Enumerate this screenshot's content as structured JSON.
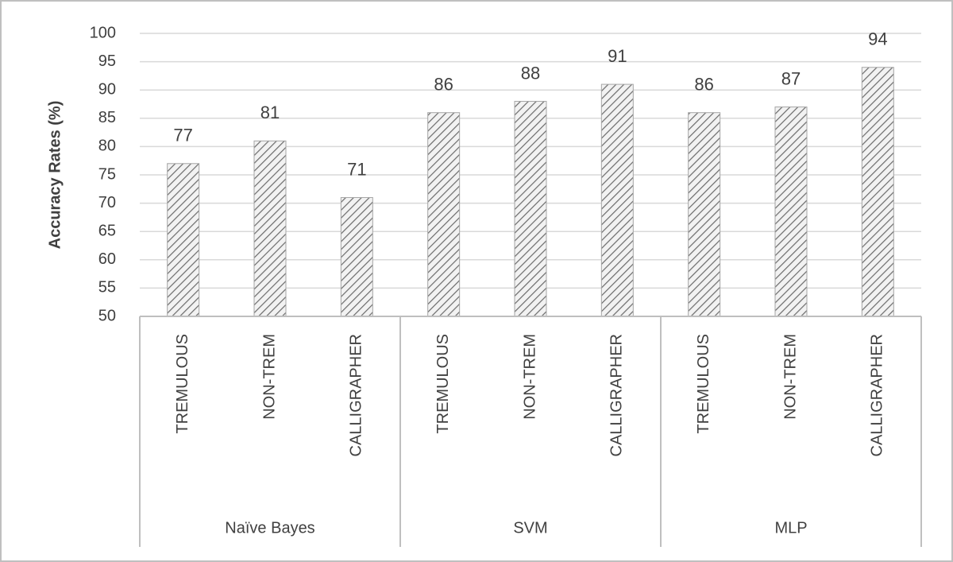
{
  "chart_data": {
    "type": "bar",
    "y_axis_label": "Accuracy Rates (%)",
    "categories": [
      "TREMULOUS",
      "NON-TREM",
      "CALLIGRAPHER",
      "TREMULOUS",
      "NON-TREM",
      "CALLIGRAPHER",
      "TREMULOUS",
      "NON-TREM",
      "CALLIGRAPHER"
    ],
    "category_groups": [
      "Naïve Bayes",
      "SVM",
      "MLP"
    ],
    "values": [
      77,
      81,
      71,
      86,
      88,
      91,
      86,
      87,
      94
    ],
    "color": "#6b6b6b",
    "ylim": [
      50,
      100
    ],
    "yticks": [
      50,
      55,
      60,
      65,
      70,
      75,
      80,
      85,
      90,
      95,
      100
    ],
    "grid": true
  }
}
